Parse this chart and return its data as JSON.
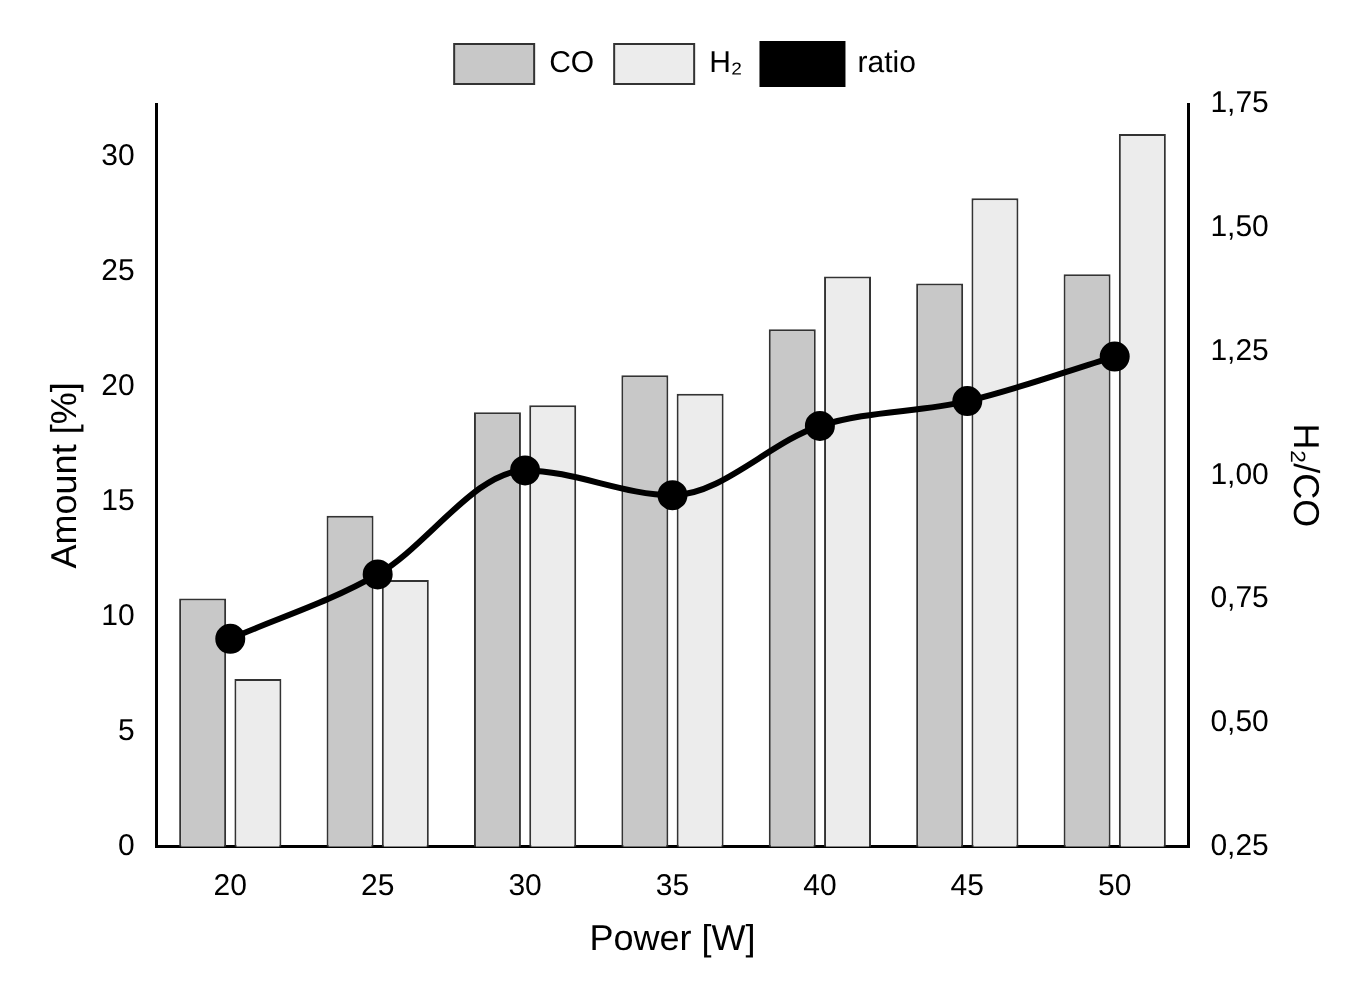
{
  "chart_data": {
    "type": "bar",
    "xlabel": "Power [W]",
    "ylabel": "Amount [%]",
    "y2label": "H₂/CO",
    "categories": [
      "20",
      "25",
      "30",
      "35",
      "40",
      "45",
      "50"
    ],
    "series": [
      {
        "name": "CO",
        "color": "#c8c8c8",
        "values": [
          10.8,
          14.4,
          18.9,
          20.5,
          22.5,
          24.5,
          24.9
        ]
      },
      {
        "name": "H₂",
        "color": "#ececec",
        "values": [
          7.3,
          11.6,
          19.2,
          19.7,
          24.8,
          28.2,
          31.0
        ]
      },
      {
        "name": "ratio",
        "type": "line",
        "axis": "y2",
        "color": "#000000",
        "marker": "circle",
        "values": [
          0.67,
          0.8,
          1.01,
          0.96,
          1.1,
          1.15,
          1.24
        ]
      }
    ],
    "ylim": [
      0,
      32.3
    ],
    "yticks": [
      0,
      5,
      10,
      15,
      20,
      25,
      30
    ],
    "y2lim": [
      0.25,
      1.75
    ],
    "y2ticks": [
      {
        "value": 0.25,
        "label": "0,25"
      },
      {
        "value": 0.5,
        "label": "0,50"
      },
      {
        "value": 0.75,
        "label": "0,75"
      },
      {
        "value": 1,
        "label": "1,00"
      },
      {
        "value": 1.25,
        "label": "1,25"
      },
      {
        "value": 1.5,
        "label": "1,50"
      },
      {
        "value": 1.75,
        "label": "1,75"
      }
    ],
    "grid": false,
    "legend": "top"
  }
}
